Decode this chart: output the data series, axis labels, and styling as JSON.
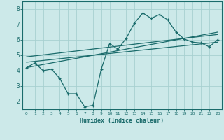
{
  "title": "",
  "xlabel": "Humidex (Indice chaleur)",
  "ylabel": "",
  "background_color": "#cce9e9",
  "grid_color": "#a8d0d0",
  "line_color": "#1a6b6b",
  "x_ticks": [
    0,
    1,
    2,
    3,
    4,
    5,
    6,
    7,
    8,
    9,
    10,
    11,
    12,
    13,
    14,
    15,
    16,
    17,
    18,
    19,
    20,
    21,
    22,
    23
  ],
  "y_ticks": [
    2,
    3,
    4,
    5,
    6,
    7,
    8
  ],
  "ylim": [
    1.5,
    8.5
  ],
  "xlim": [
    -0.5,
    23.5
  ],
  "series1_x": [
    0,
    1,
    2,
    3,
    4,
    5,
    6,
    7,
    8,
    9,
    10,
    11,
    12,
    13,
    14,
    15,
    16,
    17,
    18,
    19,
    20,
    21,
    22,
    23
  ],
  "series1_y": [
    4.2,
    4.5,
    4.0,
    4.1,
    3.5,
    2.5,
    2.5,
    1.65,
    1.75,
    4.1,
    5.75,
    5.4,
    6.1,
    7.1,
    7.75,
    7.4,
    7.65,
    7.3,
    6.5,
    6.05,
    5.85,
    5.8,
    5.55,
    6.0
  ],
  "series2_x": [
    0,
    23
  ],
  "series2_y": [
    4.2,
    6.5
  ],
  "series3_x": [
    0,
    23
  ],
  "series3_y": [
    4.9,
    6.35
  ],
  "series4_x": [
    0,
    23
  ],
  "series4_y": [
    4.55,
    5.85
  ]
}
